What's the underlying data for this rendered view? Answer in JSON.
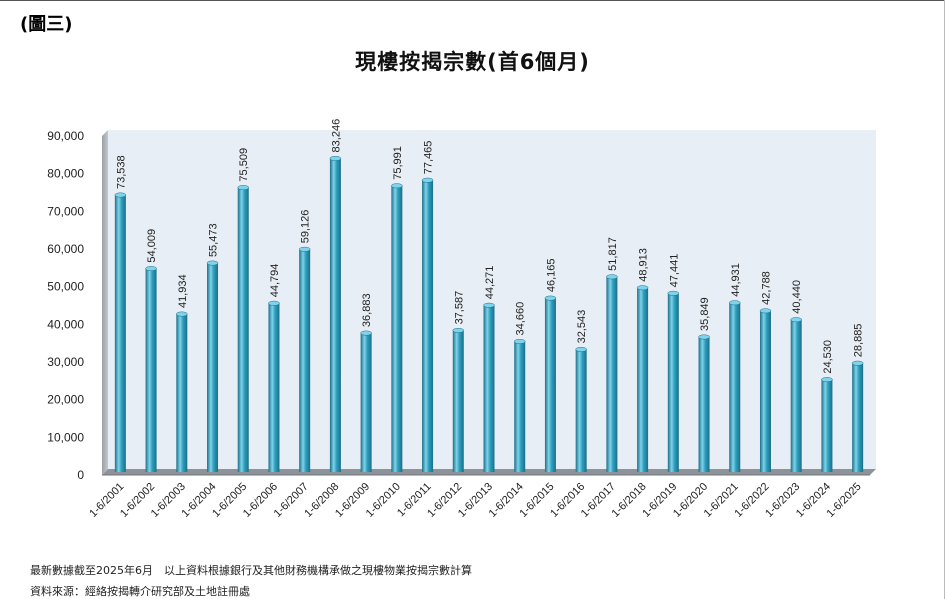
{
  "figure_label": "(圖三)",
  "footnote": "最新數據截至2025年6月　以上資料根據銀行及其他財務機構承做之現樓物業按揭宗數計算",
  "source": "資料來源：經絡按揭轉介研究部及土地註冊處",
  "colors": {
    "bar_fill": "#2e9fbe",
    "bar_highlight": "#7fd3ea",
    "bar_shadow": "#1b6f88",
    "plot_background": "#e8eef5",
    "side_wall": "#a9aeb4",
    "floor": "#8d9398"
  },
  "chart_data": {
    "type": "bar",
    "title": "現樓按揭宗數(首6個月)",
    "xlabel": "",
    "ylabel": "",
    "ylim": [
      0,
      90000
    ],
    "yticks": [
      "0",
      "10,000",
      "20,000",
      "30,000",
      "40,000",
      "50,000",
      "60,000",
      "70,000",
      "80,000",
      "90,000"
    ],
    "grid": false,
    "style": "3d",
    "categories": [
      "1-6/2001",
      "1-6/2002",
      "1-6/2003",
      "1-6/2004",
      "1-6/2005",
      "1-6/2006",
      "1-6/2007",
      "1-6/2008",
      "1-6/2009",
      "1-6/2010",
      "1-6/2011",
      "1-6/2012",
      "1-6/2013",
      "1-6/2014",
      "1-6/2015",
      "1-6/2016",
      "1-6/2017",
      "1-6/2018",
      "1-6/2019",
      "1-6/2020",
      "1-6/2021",
      "1-6/2022",
      "1-6/2023",
      "1-6/2024",
      "1-6/2025"
    ],
    "values": [
      73538,
      54009,
      41934,
      55473,
      75509,
      44794,
      59126,
      83246,
      36883,
      75991,
      77465,
      37587,
      44271,
      34660,
      46165,
      32543,
      51817,
      48913,
      47441,
      35849,
      44931,
      42788,
      40440,
      24530,
      28885
    ],
    "data_labels": [
      "73,538",
      "54,009",
      "41,934",
      "55,473",
      "75,509",
      "44,794",
      "59,126",
      "83,246",
      "36,883",
      "75,991",
      "77,465",
      "37,587",
      "44,271",
      "34,660",
      "46,165",
      "32,543",
      "51,817",
      "48,913",
      "47,441",
      "35,849",
      "44,931",
      "42,788",
      "40,440",
      "24,530",
      "28,885"
    ]
  }
}
